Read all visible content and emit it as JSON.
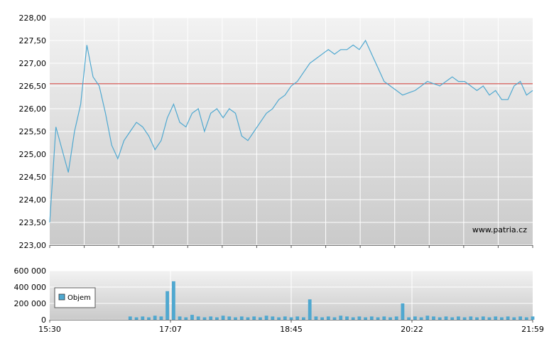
{
  "chart_data": [
    {
      "type": "line",
      "title": "",
      "xlabel": "",
      "ylabel": "",
      "ylim": [
        223.0,
        228.0
      ],
      "x_ticks": [
        "15:30",
        "17:07",
        "18:45",
        "20:22",
        "21:59"
      ],
      "y_ticks": [
        "228,00",
        "227,50",
        "227,00",
        "226,50",
        "226,00",
        "225,50",
        "225,00",
        "224,50",
        "224,00",
        "223,50",
        "223,00"
      ],
      "reference_line": {
        "value": 226.55,
        "color": "#d9534f"
      },
      "watermark": "www.patria.cz",
      "grid": true,
      "line_color": "#4fa8d0",
      "x": [
        "15:30",
        "15:35",
        "15:40",
        "15:45",
        "15:50",
        "15:55",
        "16:00",
        "16:05",
        "16:10",
        "16:15",
        "16:20",
        "16:25",
        "16:30",
        "16:35",
        "16:40",
        "16:45",
        "16:50",
        "16:55",
        "17:00",
        "17:05",
        "17:10",
        "17:15",
        "17:20",
        "17:25",
        "17:30",
        "17:35",
        "17:40",
        "17:45",
        "17:50",
        "17:55",
        "18:00",
        "18:05",
        "18:10",
        "18:15",
        "18:20",
        "18:25",
        "18:30",
        "18:35",
        "18:40",
        "18:45",
        "18:50",
        "18:55",
        "19:00",
        "19:05",
        "19:10",
        "19:15",
        "19:20",
        "19:25",
        "19:30",
        "19:35",
        "19:40",
        "19:45",
        "19:50",
        "19:55",
        "20:00",
        "20:05",
        "20:10",
        "20:15",
        "20:20",
        "20:25",
        "20:30",
        "20:35",
        "20:40",
        "20:45",
        "20:50",
        "20:55",
        "21:00",
        "21:05",
        "21:10",
        "21:15",
        "21:20",
        "21:25",
        "21:30",
        "21:35",
        "21:40",
        "21:45",
        "21:50",
        "21:55",
        "21:59"
      ],
      "values": [
        223.5,
        225.6,
        225.1,
        224.6,
        225.5,
        226.1,
        227.4,
        226.7,
        226.5,
        225.9,
        225.2,
        224.9,
        225.3,
        225.5,
        225.7,
        225.6,
        225.4,
        225.1,
        225.3,
        225.8,
        226.1,
        225.7,
        225.6,
        225.9,
        226.0,
        225.5,
        225.9,
        226.0,
        225.8,
        226.0,
        225.9,
        225.4,
        225.3,
        225.5,
        225.7,
        225.9,
        226.0,
        226.2,
        226.3,
        226.5,
        226.6,
        226.8,
        227.0,
        227.1,
        227.2,
        227.3,
        227.2,
        227.3,
        227.3,
        227.4,
        227.3,
        227.5,
        227.2,
        226.9,
        226.6,
        226.5,
        226.4,
        226.3,
        226.35,
        226.4,
        226.5,
        226.6,
        226.55,
        226.5,
        226.6,
        226.7,
        226.6,
        226.6,
        226.5,
        226.4,
        226.5,
        226.3,
        226.4,
        226.2,
        226.2,
        226.5,
        226.6,
        226.3,
        226.4
      ]
    },
    {
      "type": "bar",
      "title": "",
      "xlabel": "",
      "ylabel": "",
      "ylim": [
        0,
        600000
      ],
      "x_ticks": [
        "15:30",
        "17:07",
        "18:45",
        "20:22",
        "21:59"
      ],
      "y_ticks": [
        "600 000",
        "400 000",
        "200 000",
        "0"
      ],
      "legend": "Objem",
      "legend_position": "left",
      "bar_color": "#4fa8d0",
      "x": [
        "15:30",
        "15:35",
        "15:40",
        "15:45",
        "15:50",
        "15:55",
        "16:00",
        "16:05",
        "16:10",
        "16:15",
        "16:20",
        "16:25",
        "16:30",
        "16:35",
        "16:40",
        "16:45",
        "16:50",
        "16:55",
        "17:00",
        "17:05",
        "17:10",
        "17:15",
        "17:20",
        "17:25",
        "17:30",
        "17:35",
        "17:40",
        "17:45",
        "17:50",
        "17:55",
        "18:00",
        "18:05",
        "18:10",
        "18:15",
        "18:20",
        "18:25",
        "18:30",
        "18:35",
        "18:40",
        "18:45",
        "18:50",
        "18:55",
        "19:00",
        "19:05",
        "19:10",
        "19:15",
        "19:20",
        "19:25",
        "19:30",
        "19:35",
        "19:40",
        "19:45",
        "19:50",
        "19:55",
        "20:00",
        "20:05",
        "20:10",
        "20:15",
        "20:20",
        "20:25",
        "20:30",
        "20:35",
        "20:40",
        "20:45",
        "20:50",
        "20:55",
        "21:00",
        "21:05",
        "21:10",
        "21:15",
        "21:20",
        "21:25",
        "21:30",
        "21:35",
        "21:40",
        "21:45",
        "21:50",
        "21:55",
        "21:59"
      ],
      "values": [
        0,
        0,
        0,
        0,
        0,
        0,
        0,
        0,
        0,
        0,
        0,
        0,
        0,
        40000,
        30000,
        40000,
        30000,
        50000,
        40000,
        350000,
        470000,
        40000,
        30000,
        60000,
        40000,
        30000,
        40000,
        30000,
        50000,
        40000,
        30000,
        40000,
        30000,
        40000,
        30000,
        50000,
        40000,
        30000,
        40000,
        30000,
        40000,
        30000,
        250000,
        40000,
        30000,
        40000,
        30000,
        50000,
        40000,
        30000,
        40000,
        30000,
        40000,
        30000,
        40000,
        30000,
        40000,
        200000,
        30000,
        40000,
        30000,
        50000,
        40000,
        30000,
        40000,
        30000,
        40000,
        30000,
        40000,
        30000,
        40000,
        30000,
        40000,
        30000,
        40000,
        30000,
        40000,
        30000,
        40000
      ]
    }
  ]
}
